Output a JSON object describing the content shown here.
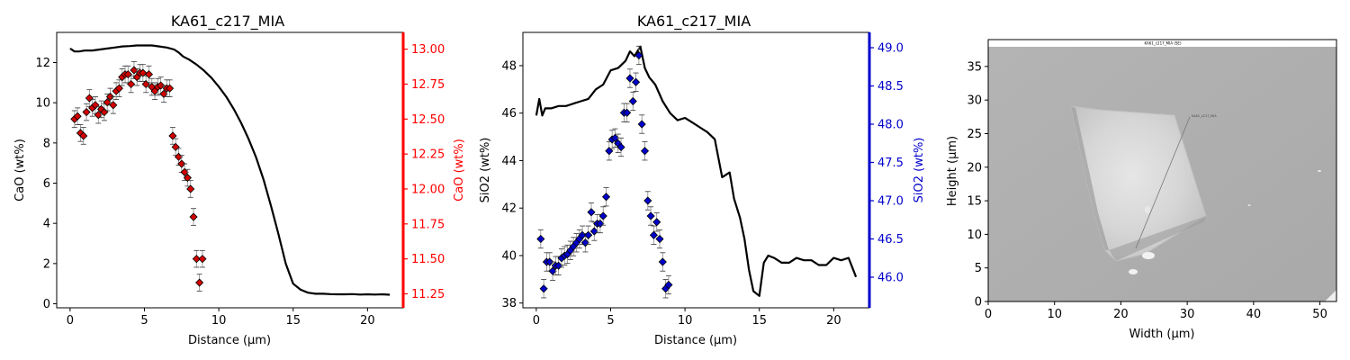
{
  "chart_data": [
    {
      "type": "line",
      "title": "KA61_c217_MIA",
      "xlabel": "Distance (µm)",
      "ylabel": "CaO (wt%)",
      "ylabel_right": "CaO (wt%)",
      "xlim": [
        -0.9,
        22.4
      ],
      "ylim": [
        -0.2,
        13.5
      ],
      "ylim_right": [
        11.15,
        13.12
      ],
      "x_ticks": [
        0,
        5,
        10,
        15,
        20
      ],
      "y_ticks": [
        0,
        2,
        4,
        6,
        8,
        10,
        12
      ],
      "y_ticks_right": [
        11.25,
        11.5,
        11.75,
        12.0,
        12.25,
        12.5,
        12.75,
        13.0
      ],
      "x_tick_labels": [
        "0",
        "5",
        "10",
        "15",
        "20"
      ],
      "y_tick_labels": [
        "0",
        "2",
        "4",
        "6",
        "8",
        "10",
        "12"
      ],
      "y_tick_labels_right": [
        "11.25",
        "11.50",
        "11.75",
        "12.00",
        "12.25",
        "12.50",
        "12.75",
        "13.00"
      ],
      "right_axis_color": "#ff0000",
      "profile": {
        "color": "#000000",
        "x": [
          0.0,
          0.3,
          0.6,
          1.0,
          1.5,
          2.0,
          2.5,
          3.0,
          3.5,
          4.0,
          4.5,
          5.0,
          5.5,
          6.0,
          6.5,
          7.0,
          7.3,
          7.6,
          8.0,
          8.5,
          9.0,
          9.5,
          10.0,
          10.5,
          11.0,
          11.5,
          12.0,
          12.5,
          13.0,
          13.5,
          14.0,
          14.5,
          15.0,
          15.5,
          16.0,
          16.5,
          17.0,
          17.5,
          18.0,
          18.5,
          19.0,
          19.5,
          20.0,
          20.5,
          21.0,
          21.5
        ],
        "y": [
          12.7,
          12.55,
          12.55,
          12.6,
          12.6,
          12.65,
          12.7,
          12.75,
          12.8,
          12.82,
          12.85,
          12.85,
          12.85,
          12.8,
          12.75,
          12.65,
          12.5,
          12.3,
          12.15,
          11.9,
          11.6,
          11.25,
          10.8,
          10.3,
          9.7,
          9.0,
          8.2,
          7.3,
          6.2,
          4.9,
          3.5,
          2.0,
          1.0,
          0.7,
          0.55,
          0.5,
          0.5,
          0.48,
          0.47,
          0.47,
          0.48,
          0.46,
          0.47,
          0.46,
          0.47,
          0.45
        ]
      },
      "points": {
        "color": "#d40000",
        "marker": "diamond",
        "x": [
          0.3,
          0.5,
          0.7,
          0.9,
          1.1,
          1.3,
          1.5,
          1.7,
          1.9,
          2.1,
          2.3,
          2.5,
          2.7,
          2.9,
          3.1,
          3.3,
          3.5,
          3.7,
          3.9,
          4.1,
          4.3,
          4.5,
          4.7,
          4.9,
          5.1,
          5.3,
          5.5,
          5.7,
          5.9,
          6.1,
          6.3,
          6.5,
          6.7,
          6.9,
          7.1,
          7.3,
          7.5,
          7.7,
          7.9,
          8.1,
          8.3,
          8.5,
          8.7,
          8.9
        ],
        "y": [
          12.5,
          12.52,
          12.4,
          12.38,
          12.55,
          12.65,
          12.58,
          12.6,
          12.53,
          12.57,
          12.55,
          12.62,
          12.66,
          12.6,
          12.7,
          12.72,
          12.8,
          12.82,
          12.82,
          12.75,
          12.85,
          12.8,
          12.83,
          12.83,
          12.75,
          12.82,
          12.73,
          12.7,
          12.73,
          12.74,
          12.68,
          12.72,
          12.72,
          12.38,
          12.3,
          12.23,
          12.18,
          12.12,
          12.08,
          12.0,
          11.8,
          11.5,
          11.33,
          11.5
        ],
        "err": [
          0.06,
          0.06,
          0.06,
          0.06,
          0.06,
          0.06,
          0.06,
          0.06,
          0.06,
          0.06,
          0.06,
          0.06,
          0.06,
          0.06,
          0.06,
          0.06,
          0.06,
          0.06,
          0.06,
          0.06,
          0.06,
          0.06,
          0.06,
          0.06,
          0.06,
          0.06,
          0.06,
          0.06,
          0.06,
          0.06,
          0.06,
          0.06,
          0.06,
          0.06,
          0.06,
          0.06,
          0.06,
          0.06,
          0.06,
          0.06,
          0.06,
          0.06,
          0.06,
          0.06
        ]
      }
    },
    {
      "type": "line",
      "title": "KA61_c217_MIA",
      "xlabel": "Distance (µm)",
      "ylabel": "SiO2 (wt%)",
      "ylabel_right": "SiO2 (wt%)",
      "xlim": [
        -0.9,
        22.4
      ],
      "ylim": [
        37.8,
        49.4
      ],
      "ylim_right": [
        45.6,
        49.2
      ],
      "x_ticks": [
        0,
        5,
        10,
        15,
        20
      ],
      "y_ticks": [
        38,
        40,
        42,
        44,
        46,
        48
      ],
      "y_ticks_right": [
        46.0,
        46.5,
        47.0,
        47.5,
        48.0,
        48.5,
        49.0
      ],
      "x_tick_labels": [
        "0",
        "5",
        "10",
        "15",
        "20"
      ],
      "y_tick_labels": [
        "38",
        "40",
        "42",
        "44",
        "46",
        "48"
      ],
      "y_tick_labels_right": [
        "46.0",
        "46.5",
        "47.0",
        "47.5",
        "48.0",
        "48.5",
        "49.0"
      ],
      "right_axis_color": "#0000cc",
      "profile": {
        "color": "#000000",
        "x": [
          0.0,
          0.2,
          0.4,
          0.6,
          1.0,
          1.5,
          2.0,
          2.5,
          3.0,
          3.5,
          4.0,
          4.5,
          5.0,
          5.5,
          6.0,
          6.3,
          6.6,
          7.0,
          7.3,
          7.6,
          8.0,
          8.5,
          9.0,
          9.5,
          10.0,
          10.5,
          11.0,
          11.5,
          12.0,
          12.5,
          13.0,
          13.3,
          13.7,
          14.0,
          14.3,
          14.6,
          15.0,
          15.3,
          15.6,
          16.0,
          16.5,
          17.0,
          17.5,
          18.0,
          18.5,
          19.0,
          19.5,
          20.0,
          20.5,
          21.0,
          21.5
        ],
        "y": [
          45.9,
          46.6,
          45.9,
          46.2,
          46.2,
          46.3,
          46.3,
          46.4,
          46.5,
          46.6,
          47.0,
          47.2,
          47.8,
          47.9,
          48.2,
          48.6,
          48.4,
          48.8,
          47.9,
          47.5,
          47.2,
          46.5,
          46.0,
          45.7,
          45.8,
          45.6,
          45.4,
          45.2,
          44.9,
          43.3,
          43.5,
          42.4,
          41.6,
          40.7,
          39.4,
          38.5,
          38.3,
          39.7,
          40.0,
          39.9,
          39.7,
          39.7,
          39.9,
          39.8,
          39.8,
          39.6,
          39.6,
          39.9,
          39.8,
          39.9,
          39.1
        ]
      },
      "points": {
        "color": "#0000cc",
        "marker": "diamond",
        "x": [
          0.3,
          0.5,
          0.7,
          0.9,
          1.1,
          1.3,
          1.5,
          1.7,
          1.9,
          2.1,
          2.3,
          2.5,
          2.7,
          2.9,
          3.1,
          3.3,
          3.5,
          3.7,
          3.9,
          4.1,
          4.3,
          4.5,
          4.7,
          4.9,
          5.1,
          5.3,
          5.5,
          5.7,
          5.9,
          6.1,
          6.3,
          6.5,
          6.7,
          6.9,
          7.1,
          7.3,
          7.5,
          7.7,
          7.9,
          8.1,
          8.3,
          8.5,
          8.7,
          8.9
        ],
        "y": [
          46.5,
          45.85,
          46.2,
          46.2,
          46.08,
          46.15,
          46.15,
          46.25,
          46.28,
          46.3,
          46.35,
          46.4,
          46.45,
          46.5,
          46.55,
          46.45,
          46.55,
          46.85,
          46.6,
          46.7,
          46.7,
          46.8,
          47.05,
          47.65,
          47.8,
          47.82,
          47.75,
          47.7,
          48.15,
          48.15,
          48.6,
          48.3,
          48.55,
          48.9,
          48.0,
          47.65,
          47.0,
          46.8,
          46.55,
          46.72,
          46.5,
          46.2,
          45.85,
          45.9
        ],
        "err": [
          0.12,
          0.12,
          0.12,
          0.12,
          0.12,
          0.12,
          0.12,
          0.12,
          0.12,
          0.12,
          0.12,
          0.12,
          0.12,
          0.12,
          0.12,
          0.12,
          0.12,
          0.12,
          0.12,
          0.12,
          0.12,
          0.12,
          0.12,
          0.12,
          0.12,
          0.12,
          0.12,
          0.12,
          0.12,
          0.12,
          0.12,
          0.12,
          0.12,
          0.12,
          0.12,
          0.12,
          0.12,
          0.12,
          0.12,
          0.12,
          0.12,
          0.12,
          0.12,
          0.12
        ]
      }
    },
    {
      "type": "image",
      "title": "",
      "image_caption": "KA61_c217_MIA (SE)",
      "image_annotation": "KA61_c217_MIA",
      "xlabel": "Width (µm)",
      "ylabel": "Height (µm)",
      "xlim": [
        0,
        52.5
      ],
      "ylim": [
        0,
        39
      ],
      "x_ticks": [
        0,
        10,
        20,
        30,
        40,
        50
      ],
      "y_ticks": [
        0,
        5,
        10,
        15,
        20,
        25,
        30,
        35
      ],
      "x_tick_labels": [
        "0",
        "10",
        "20",
        "30",
        "40",
        "50"
      ],
      "y_tick_labels": [
        "0",
        "5",
        "10",
        "15",
        "20",
        "25",
        "30",
        "35"
      ]
    }
  ]
}
